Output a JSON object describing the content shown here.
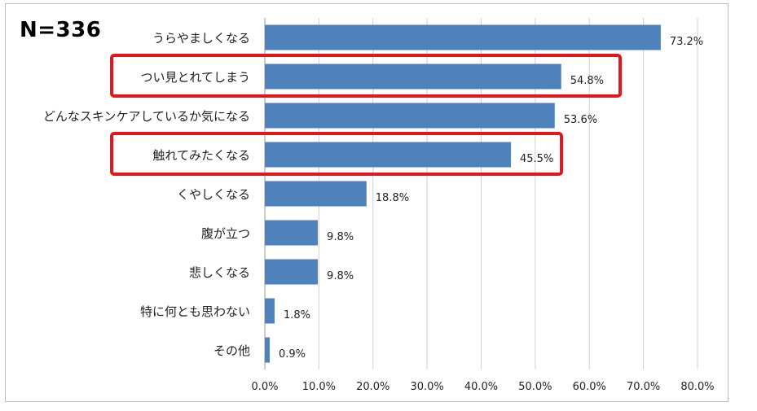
{
  "sample_label": "N=336",
  "chart_data": {
    "type": "bar",
    "orientation": "horizontal",
    "categories": [
      "うらやましくなる",
      "つい見とれてしまう",
      "どんなスキンケアしているか気になる",
      "触れてみたくなる",
      "くやしくなる",
      "腹が立つ",
      "悲しくなる",
      "特に何とも思わない",
      "その他"
    ],
    "values": [
      73.2,
      54.8,
      53.6,
      45.5,
      18.8,
      9.8,
      9.8,
      1.8,
      0.9
    ],
    "value_labels": [
      "73.2%",
      "54.8%",
      "53.6%",
      "45.5%",
      "18.8%",
      "9.8%",
      "9.8%",
      "1.8%",
      "0.9%"
    ],
    "x_ticks": [
      "0.0%",
      "10.0%",
      "20.0%",
      "30.0%",
      "40.0%",
      "50.0%",
      "60.0%",
      "70.0%",
      "80.0%"
    ],
    "xlim": [
      0,
      80
    ],
    "grid": "vertical",
    "highlighted_categories": [
      "つい見とれてしまう",
      "触れてみたくなる"
    ],
    "colors": {
      "bar": "#4f81bd",
      "highlight": "#e3161b",
      "grid": "#d0d0d0"
    }
  }
}
